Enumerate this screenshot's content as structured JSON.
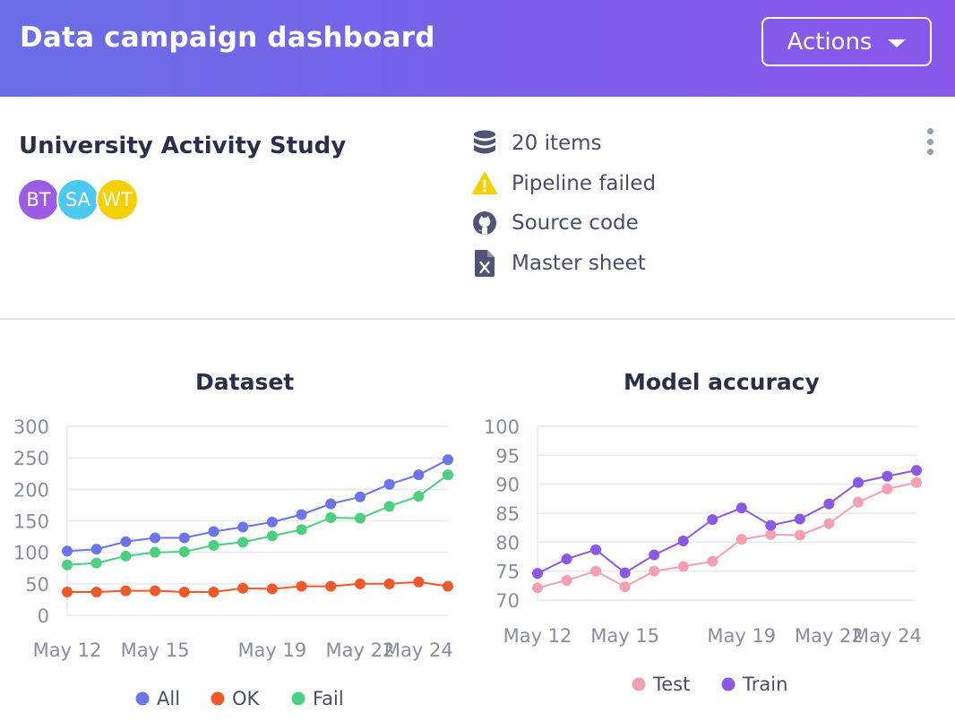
{
  "header": {
    "title": "Data campaign dashboard",
    "actions_label": "Actions",
    "gradient_start": "#6a6fe8",
    "gradient_end": "#8a57ea"
  },
  "project": {
    "title": "University Activity Study",
    "avatars": [
      {
        "initials": "BT",
        "color": "#9b5de5"
      },
      {
        "initials": "SA",
        "color": "#4cc9f0"
      },
      {
        "initials": "WT",
        "color": "#f5d000"
      }
    ],
    "meta": [
      {
        "icon": "database-icon",
        "text": "20 items"
      },
      {
        "icon": "warning-icon",
        "text": "Pipeline failed"
      },
      {
        "icon": "github-icon",
        "text": "Source code"
      },
      {
        "icon": "excel-file-icon",
        "text": "Master sheet"
      }
    ]
  },
  "chart_data": [
    {
      "type": "line",
      "title": "Dataset",
      "categories": [
        "May 12",
        "May 13",
        "May 14",
        "May 15",
        "May 16",
        "May 17",
        "May 18",
        "May 19",
        "May 20",
        "May 21",
        "May 22",
        "May 23",
        "May 24",
        "May 25"
      ],
      "xticks": [
        "May 12",
        "May 15",
        "May 19",
        "May 22",
        "May 24"
      ],
      "yticks": [
        0,
        50,
        100,
        150,
        200,
        250,
        300
      ],
      "ylim": [
        0,
        300
      ],
      "series": [
        {
          "name": "All",
          "color": "#6b74e8",
          "values": [
            102,
            105,
            117,
            123,
            123,
            133,
            140,
            148,
            160,
            177,
            188,
            208,
            223,
            247
          ]
        },
        {
          "name": "OK",
          "color": "#f0582a",
          "values": [
            37,
            37,
            39,
            39,
            37,
            37,
            43,
            42,
            46,
            46,
            50,
            50,
            53,
            46
          ]
        },
        {
          "name": "Fail",
          "color": "#4ccf80",
          "values": [
            80,
            83,
            94,
            100,
            101,
            111,
            116,
            126,
            136,
            155,
            154,
            173,
            189,
            223
          ]
        }
      ]
    },
    {
      "type": "line",
      "title": "Model accuracy",
      "categories": [
        "May 12",
        "May 13",
        "May 14",
        "May 15",
        "May 16",
        "May 17",
        "May 18",
        "May 19",
        "May 20",
        "May 21",
        "May 22",
        "May 23",
        "May 24",
        "May 25"
      ],
      "xticks": [
        "May 12",
        "May 15",
        "May 19",
        "May 22",
        "May 24"
      ],
      "yticks": [
        70,
        75,
        80,
        85,
        90,
        95,
        100
      ],
      "ylim": [
        70,
        100
      ],
      "series": [
        {
          "name": "Test",
          "color": "#f4a0b4",
          "values": [
            72.1,
            73.4,
            75.0,
            72.3,
            75.0,
            75.8,
            76.7,
            80.5,
            81.3,
            81.2,
            83.2,
            86.9,
            89.2,
            90.3
          ]
        },
        {
          "name": "Train",
          "color": "#8b58e6",
          "values": [
            74.6,
            77.1,
            78.7,
            74.7,
            77.8,
            80.2,
            83.9,
            85.9,
            82.9,
            84.0,
            86.6,
            90.3,
            91.4,
            92.4
          ]
        }
      ]
    }
  ]
}
